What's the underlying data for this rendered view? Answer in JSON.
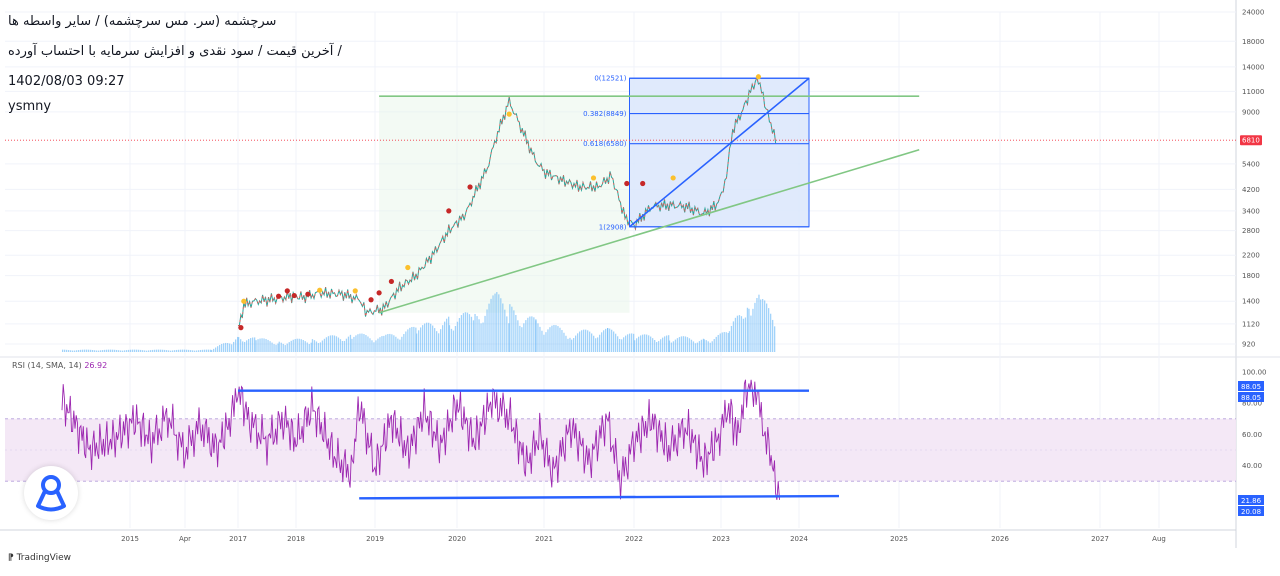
{
  "header": {
    "line1": "سرچشمه (سر. مس سرچشمه) / سایر واسطه ها",
    "line2": "آخرین قیمت / سود نقدی و افزایش سرمایه با احتساب آورده /",
    "line3": "1402/08/03 09:27",
    "line4": "ysmny"
  },
  "rsi_label": {
    "name": "RSI (14, SMA, 14)",
    "value": "26.92"
  },
  "branding": "TradingView",
  "colors": {
    "trend_green": "#81c784",
    "fib_blue": "#2962ff",
    "rsi_purple": "#9c27b0",
    "volume_blue": "#64b5f6",
    "last_price": "#f23645"
  },
  "chart_data": [
    {
      "type": "candlestick",
      "title": "سرچشمه (سر. مس سرچشمه) / سایر واسطه ها",
      "price_axis_labels": [
        "24000",
        "18000",
        "14000",
        "11000",
        "9000",
        "6810",
        "5400",
        "4200",
        "3400",
        "2800",
        "2200",
        "1800",
        "1400",
        "1120",
        "920"
      ],
      "price_scale": "log",
      "last_price": "6810",
      "x_tick_labels": [
        "2015",
        "Apr",
        "2017",
        "2018",
        "2019",
        "2020",
        "2021",
        "2022",
        "2023",
        "2024",
        "2025",
        "2026",
        "2027",
        "Aug"
      ],
      "price_series": [
        [
          "2017.0",
          1050
        ],
        [
          "2017.1",
          1350
        ],
        [
          "2017.3",
          1400
        ],
        [
          "2017.5",
          1420
        ],
        [
          "2017.7",
          1440
        ],
        [
          "2017.9",
          1470
        ],
        [
          "2018.1",
          1460
        ],
        [
          "2018.3",
          1520
        ],
        [
          "2018.6",
          1500
        ],
        [
          "2018.8",
          1420
        ],
        [
          "2018.9",
          1250
        ],
        [
          "2019.1",
          1300
        ],
        [
          "2019.3",
          1600
        ],
        [
          "2019.5",
          1800
        ],
        [
          "2019.7",
          2200
        ],
        [
          "2019.9",
          2800
        ],
        [
          "2020.1",
          3300
        ],
        [
          "2020.2",
          4000
        ],
        [
          "2020.35",
          5200
        ],
        [
          "2020.45",
          7000
        ],
        [
          "2020.6",
          10000
        ],
        [
          "2020.75",
          7500
        ],
        [
          "2020.9",
          5600
        ],
        [
          "2021.0",
          5000
        ],
        [
          "2021.2",
          4600
        ],
        [
          "2021.4",
          4300
        ],
        [
          "2021.6",
          4300
        ],
        [
          "2021.75",
          4800
        ],
        [
          "2021.9",
          3200
        ],
        [
          "2022.0",
          2950
        ],
        [
          "2022.2",
          3550
        ],
        [
          "2022.4",
          3600
        ],
        [
          "2022.6",
          3550
        ],
        [
          "2022.8",
          3300
        ],
        [
          "2022.95",
          3600
        ],
        [
          "2023.05",
          4400
        ],
        [
          "2023.15",
          7500
        ],
        [
          "2023.3",
          9500
        ],
        [
          "2023.4",
          11500
        ],
        [
          "2023.48",
          12400
        ],
        [
          "2023.58",
          9300
        ],
        [
          "2023.7",
          6810
        ]
      ],
      "volume_series": [
        [
          "2014.5",
          0.02
        ],
        [
          "2016.5",
          0.02
        ],
        [
          "2017.0",
          0.15
        ],
        [
          "2017.3",
          0.12
        ],
        [
          "2017.7",
          0.1
        ],
        [
          "2018.2",
          0.12
        ],
        [
          "2018.7",
          0.16
        ],
        [
          "2019.1",
          0.14
        ],
        [
          "2019.5",
          0.22
        ],
        [
          "2019.9",
          0.3
        ],
        [
          "2020.2",
          0.35
        ],
        [
          "2020.45",
          0.5
        ],
        [
          "2020.6",
          0.4
        ],
        [
          "2020.9",
          0.28
        ],
        [
          "2021.3",
          0.18
        ],
        [
          "2021.7",
          0.2
        ],
        [
          "2022.0",
          0.15
        ],
        [
          "2022.4",
          0.14
        ],
        [
          "2022.8",
          0.12
        ],
        [
          "2023.1",
          0.18
        ],
        [
          "2023.35",
          0.55
        ],
        [
          "2023.5",
          0.5
        ],
        [
          "2023.7",
          0.25
        ]
      ],
      "fibonacci": {
        "levels": [
          {
            "label": "0(12521)",
            "price": 12521
          },
          {
            "label": "0.382(8849)",
            "price": 8849
          },
          {
            "label": "0.618(6580)",
            "price": 6580
          },
          {
            "label": "1(2908)",
            "price": 2908
          }
        ],
        "from_date": "2021.95",
        "to_date": "2024.1"
      },
      "trendlines": [
        {
          "name": "resistance",
          "from": [
            "2019.05",
            10500
          ],
          "to": [
            "2025.2",
            10500
          ],
          "color": "#81c784"
        },
        {
          "name": "support",
          "from": [
            "2019.05",
            1250
          ],
          "to": [
            "2025.2",
            6200
          ],
          "color": "#81c784"
        },
        {
          "name": "fib-diagonal",
          "from": [
            "2021.95",
            2908
          ],
          "to": [
            "2024.1",
            12521
          ],
          "color": "#2962ff"
        }
      ],
      "signal_dots": [
        {
          "x": "2017.05",
          "price": 1080,
          "kind": "red"
        },
        {
          "x": "2017.1",
          "price": 1400,
          "kind": "yellow"
        },
        {
          "x": "2017.7",
          "price": 1470,
          "kind": "red"
        },
        {
          "x": "2017.85",
          "price": 1550,
          "kind": "red"
        },
        {
          "x": "2017.97",
          "price": 1480,
          "kind": "red"
        },
        {
          "x": "2018.15",
          "price": 1500,
          "kind": "red"
        },
        {
          "x": "2018.3",
          "price": 1560,
          "kind": "yellow"
        },
        {
          "x": "2018.75",
          "price": 1550,
          "kind": "yellow"
        },
        {
          "x": "2018.95",
          "price": 1420,
          "kind": "red"
        },
        {
          "x": "2019.05",
          "price": 1520,
          "kind": "red"
        },
        {
          "x": "2019.2",
          "price": 1700,
          "kind": "red"
        },
        {
          "x": "2019.4",
          "price": 1950,
          "kind": "yellow"
        },
        {
          "x": "2019.9",
          "price": 3400,
          "kind": "red"
        },
        {
          "x": "2020.15",
          "price": 4300,
          "kind": "red"
        },
        {
          "x": "2020.6",
          "price": 8800,
          "kind": "yellow"
        },
        {
          "x": "2021.55",
          "price": 4700,
          "kind": "yellow"
        },
        {
          "x": "2021.92",
          "price": 4450,
          "kind": "red"
        },
        {
          "x": "2022.1",
          "price": 4450,
          "kind": "red"
        },
        {
          "x": "2022.45",
          "price": 4700,
          "kind": "yellow"
        },
        {
          "x": "2023.48",
          "price": 12700,
          "kind": "yellow"
        }
      ]
    },
    {
      "type": "line",
      "title": "RSI (14, SMA, 14)",
      "y_axis_labels": [
        "100.00",
        "80.00",
        "60.00",
        "40.00"
      ],
      "ylim": [
        0,
        100
      ],
      "band": [
        30,
        70
      ],
      "current_values": [
        "88.05",
        "88.05",
        "21.86",
        "20.08"
      ],
      "rsi_series": [
        [
          "2014.5",
          82
        ],
        [
          "2014.7",
          50
        ],
        [
          "2014.9",
          58
        ],
        [
          "2015.1",
          70
        ],
        [
          "2015.4",
          55
        ],
        [
          "2015.7",
          72
        ],
        [
          "2016.0",
          48
        ],
        [
          "2016.3",
          66
        ],
        [
          "2016.6",
          50
        ],
        [
          "2016.9",
          72
        ],
        [
          "2017.0",
          90
        ],
        [
          "2017.2",
          68
        ],
        [
          "2017.5",
          55
        ],
        [
          "2017.8",
          70
        ],
        [
          "2018.0",
          55
        ],
        [
          "2018.2",
          78
        ],
        [
          "2018.5",
          45
        ],
        [
          "2018.7",
          35
        ],
        [
          "2018.8",
          80
        ],
        [
          "2019.0",
          38
        ],
        [
          "2019.2",
          70
        ],
        [
          "2019.4",
          48
        ],
        [
          "2019.6",
          75
        ],
        [
          "2019.8",
          52
        ],
        [
          "2020.0",
          80
        ],
        [
          "2020.2",
          55
        ],
        [
          "2020.4",
          82
        ],
        [
          "2020.6",
          72
        ],
        [
          "2020.8",
          40
        ],
        [
          "2020.95",
          60
        ],
        [
          "2021.1",
          35
        ],
        [
          "2021.3",
          65
        ],
        [
          "2021.5",
          42
        ],
        [
          "2021.7",
          70
        ],
        [
          "2021.85",
          30
        ],
        [
          "2022.0",
          55
        ],
        [
          "2022.2",
          70
        ],
        [
          "2022.4",
          50
        ],
        [
          "2022.6",
          65
        ],
        [
          "2022.8",
          42
        ],
        [
          "2023.0",
          60
        ],
        [
          "2023.1",
          80
        ],
        [
          "2023.2",
          58
        ],
        [
          "2023.3",
          85
        ],
        [
          "2023.4",
          93
        ],
        [
          "2023.5",
          75
        ],
        [
          "2023.6",
          55
        ],
        [
          "2023.7",
          30
        ],
        [
          "2023.75",
          22
        ]
      ],
      "trendlines": [
        {
          "name": "rsi-top",
          "from": [
            "2017.0",
            88.05
          ],
          "to": [
            "2024.1",
            88.05
          ],
          "color": "#2962ff"
        },
        {
          "name": "rsi-bottom",
          "from": [
            "2018.8",
            19
          ],
          "to": [
            "2024.4",
            20.5
          ],
          "color": "#2962ff"
        }
      ]
    }
  ]
}
